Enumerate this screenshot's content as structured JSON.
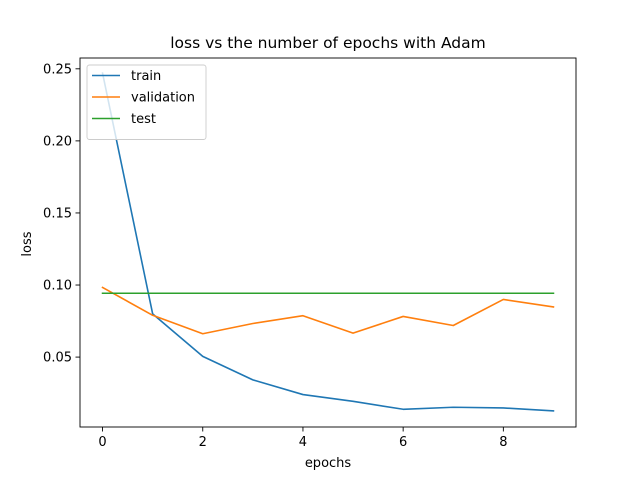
{
  "chart_data": {
    "type": "line",
    "title": "loss vs the number of epochs with Adam",
    "xlabel": "epochs",
    "ylabel": "loss",
    "x": [
      0,
      1,
      2,
      3,
      4,
      5,
      6,
      7,
      8,
      9
    ],
    "xlim": [
      -0.45,
      9.45
    ],
    "ylim": [
      0.0015,
      0.2575
    ],
    "xticks": [
      0,
      2,
      4,
      6,
      8
    ],
    "xtick_labels": [
      "0",
      "2",
      "4",
      "6",
      "8"
    ],
    "yticks": [
      0.05,
      0.1,
      0.15,
      0.2,
      0.25
    ],
    "ytick_labels": [
      "0.05",
      "0.10",
      "0.15",
      "0.20",
      "0.25"
    ],
    "grid": false,
    "legend_position": "top-left",
    "series": [
      {
        "name": "train",
        "color": "#1f77b4",
        "values": [
          0.247,
          0.08,
          0.0505,
          0.0342,
          0.024,
          0.0193,
          0.0138,
          0.0152,
          0.0147,
          0.0127
        ]
      },
      {
        "name": "validation",
        "color": "#ff7f0e",
        "values": [
          0.0983,
          0.079,
          0.0662,
          0.0733,
          0.0787,
          0.0666,
          0.0782,
          0.0719,
          0.09,
          0.0848
        ]
      },
      {
        "name": "test",
        "color": "#2ca02c",
        "values": [
          0.0943,
          0.0943,
          0.0943,
          0.0943,
          0.0943,
          0.0943,
          0.0943,
          0.0943,
          0.0943,
          0.0943
        ]
      }
    ]
  }
}
